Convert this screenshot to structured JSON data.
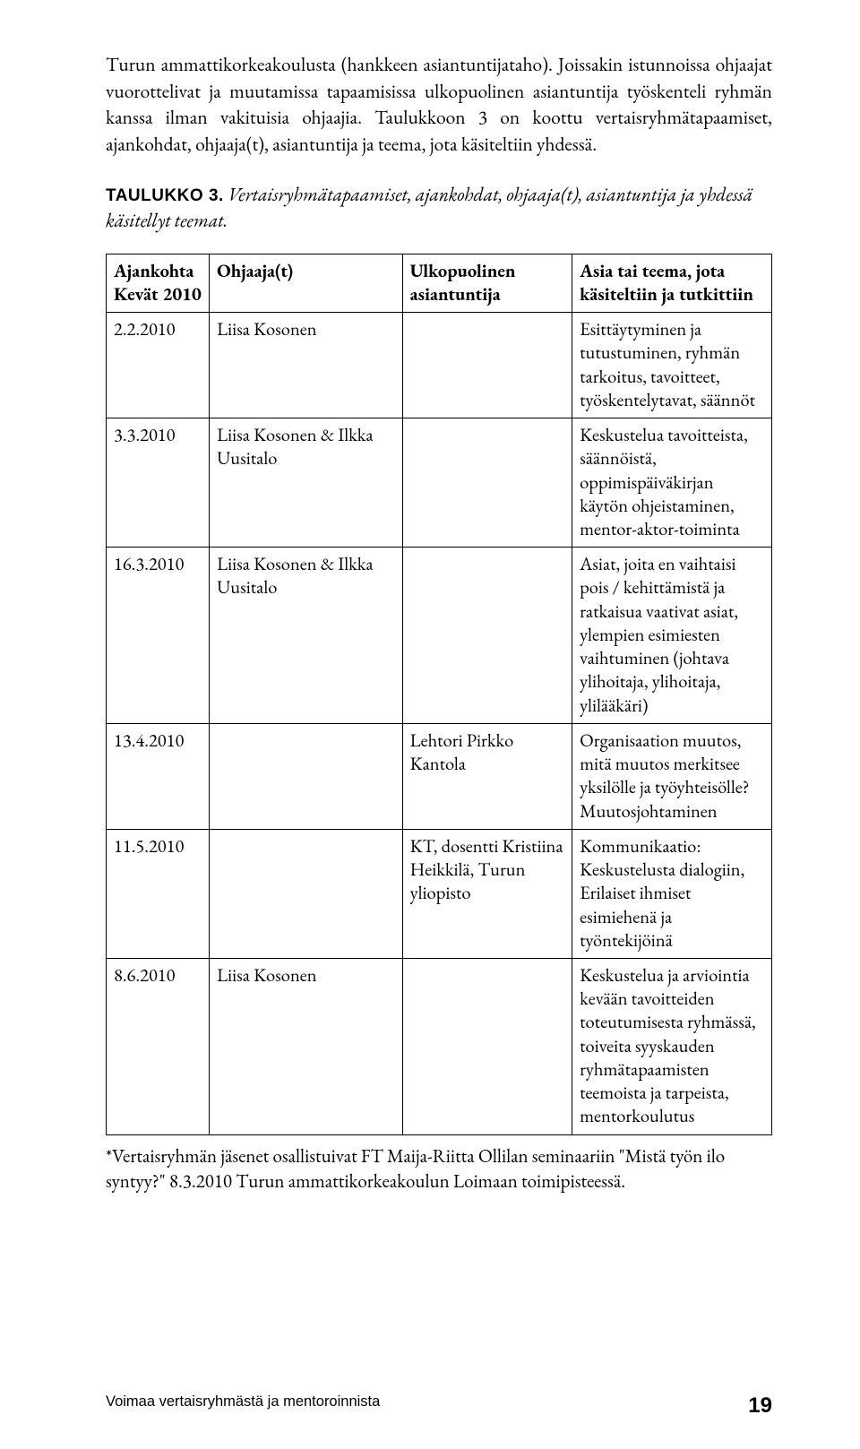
{
  "body": {
    "para1": "Turun ammattikorkeakoulusta (hankkeen asiantuntijataho). Joissakin istunnoissa ohjaajat vuorottelivat ja muutamissa tapaamisissa ulkopuolinen asiantuntija työskenteli ryhmän kanssa ilman vakituisia ohjaajia. Taulukkoon 3 on koottu vertaisryhmätapaamiset, ajankohdat, ohjaaja(t), asiantuntija ja teema, jota käsiteltiin yhdessä.",
    "caption_label": "TAULUKKO 3.",
    "caption_text": " Vertaisryhmätapaamiset, ajankohdat, ohjaaja(t), asiantuntija ja yhdessä käsitellyt teemat.",
    "footnote": "*Vertaisryhmän jäsenet osallistuivat FT Maija-Riitta Ollilan seminaariin \"Mistä työn ilo syntyy?\" 8.3.2010 Turun ammattikorkeakoulun Loimaan toimipisteessä."
  },
  "table": {
    "headers": [
      "Ajankohta Kevät 2010",
      "Ohjaaja(t)",
      "Ulkopuolinen asiantuntija",
      "Asia tai teema, jota käsiteltiin ja tutkittiin"
    ],
    "rows": [
      {
        "c0": "2.2.2010",
        "c1": "Liisa Kosonen",
        "c2": "",
        "c3": "Esittäytyminen ja tutustuminen, ryhmän tarkoitus, tavoitteet, työskentelytavat, säännöt"
      },
      {
        "c0": "3.3.2010",
        "c1": "Liisa Kosonen & Ilkka Uusitalo",
        "c2": "",
        "c3": "Keskustelua tavoitteista, säännöistä, oppimispäiväkirjan käytön ohjeistaminen, mentor-aktor-toiminta"
      },
      {
        "c0": "16.3.2010",
        "c1": "Liisa Kosonen & Ilkka Uusitalo",
        "c2": "",
        "c3": "Asiat, joita en vaihtaisi pois / kehittämistä ja ratkaisua vaativat asiat, ylempien esimiesten vaihtuminen (johtava ylihoitaja, ylihoitaja, ylilääkäri)"
      },
      {
        "c0": "13.4.2010",
        "c1": "",
        "c2": "Lehtori Pirkko Kantola",
        "c3": "Organisaation muutos, mitä muutos merkitsee yksilölle ja työyhteisölle? Muutosjohtaminen"
      },
      {
        "c0": "11.5.2010",
        "c1": "",
        "c2": "KT, dosentti Kristiina Heikkilä, Turun yliopisto",
        "c3": "Kommunikaatio: Keskustelusta dialogiin, Erilaiset ihmiset esimiehenä ja työntekijöinä"
      },
      {
        "c0": "8.6.2010",
        "c1": "Liisa Kosonen",
        "c2": "",
        "c3": "Keskustelua ja arviointia kevään tavoitteiden toteutumisesta ryhmässä, toiveita syyskauden ryhmätapaamisten teemoista ja tarpeista, mentorkoulutus"
      }
    ]
  },
  "footer": {
    "running_title": "Voimaa vertaisryhmästä ja mentoroinnista",
    "page_number": "19"
  }
}
